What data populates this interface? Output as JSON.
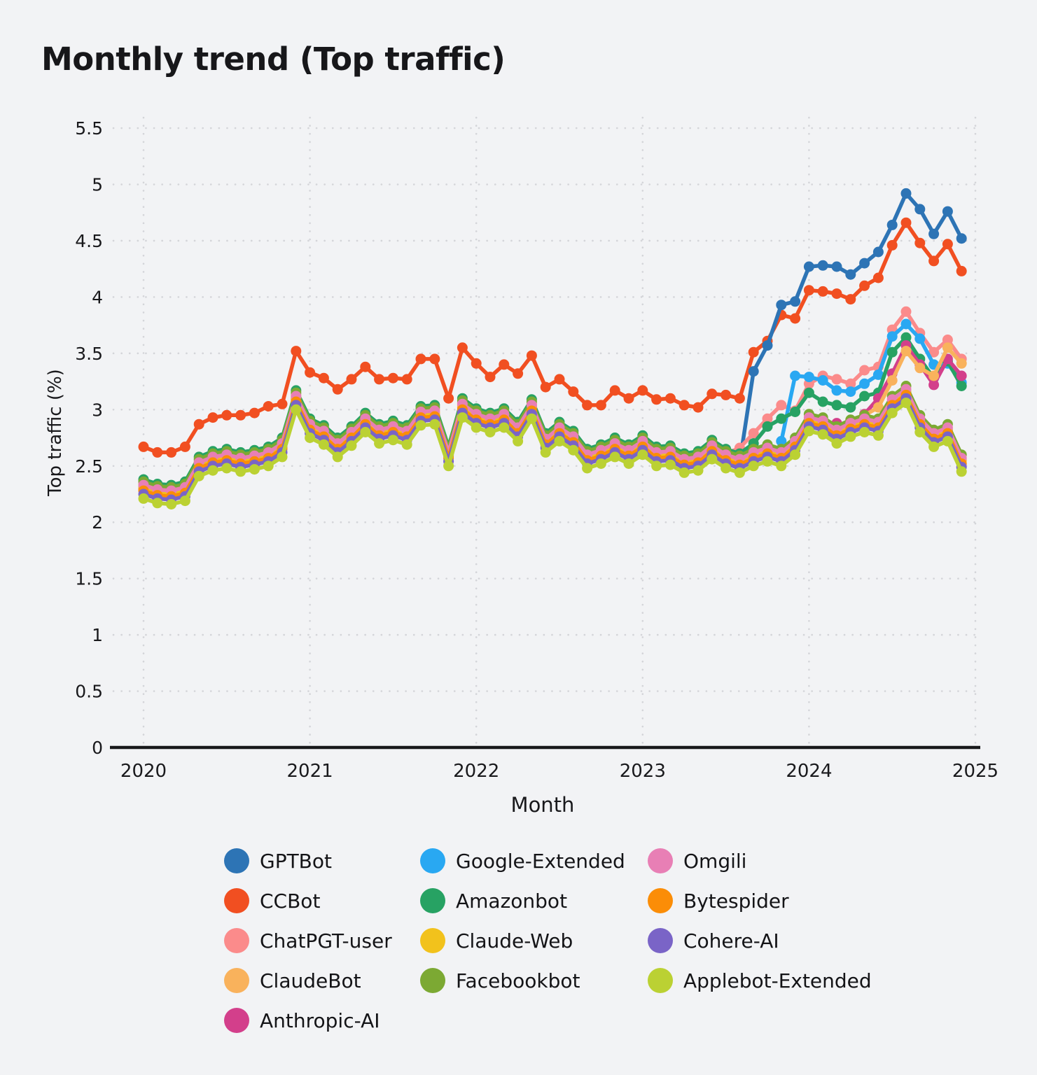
{
  "title": "Monthly trend (Top traffic)",
  "legend": {
    "position": "bottom",
    "columns": [
      [
        "GPTBot",
        "CCBot",
        "ChatPGT-user",
        "ClaudeBot",
        "Anthropic-AI"
      ],
      [
        "Google-Extended",
        "Amazonbot",
        "Claude-Web",
        "Facebookbot"
      ],
      [
        "Omgili",
        "Bytespider",
        "Cohere-AI",
        "Applebot-Extended"
      ]
    ]
  },
  "chart_data": {
    "type": "line",
    "title": "Monthly trend (Top traffic)",
    "xlabel": "Month",
    "ylabel": "Top traffic (%)",
    "x_tick_labels": [
      "2020",
      "2021",
      "2022",
      "2023",
      "2024",
      "2025"
    ],
    "y_tick_labels": [
      "0",
      "0.5",
      "1",
      "1.5",
      "2",
      "2.5",
      "3",
      "3.5",
      "4",
      "4.5",
      "5",
      "5.5"
    ],
    "y_ticks": [
      0,
      0.5,
      1,
      1.5,
      2,
      2.5,
      3,
      3.5,
      4,
      4.5,
      5,
      5.5
    ],
    "ylim": [
      0,
      5.75
    ],
    "grid": "dotted",
    "marker": "circle",
    "colors": {
      "background": "#f2f3f5",
      "gridline": "#d4d5d9",
      "axis_line": "#17181a",
      "text": "#19191c"
    },
    "months": [
      "2020-01",
      "2020-02",
      "2020-03",
      "2020-04",
      "2020-05",
      "2020-06",
      "2020-07",
      "2020-08",
      "2020-09",
      "2020-10",
      "2020-11",
      "2020-12",
      "2021-01",
      "2021-02",
      "2021-03",
      "2021-04",
      "2021-05",
      "2021-06",
      "2021-07",
      "2021-08",
      "2021-09",
      "2021-10",
      "2021-11",
      "2021-12",
      "2022-01",
      "2022-02",
      "2022-03",
      "2022-04",
      "2022-05",
      "2022-06",
      "2022-07",
      "2022-08",
      "2022-09",
      "2022-10",
      "2022-11",
      "2022-12",
      "2023-01",
      "2023-02",
      "2023-03",
      "2023-04",
      "2023-05",
      "2023-06",
      "2023-07",
      "2023-08",
      "2023-09",
      "2023-10",
      "2023-11",
      "2023-12",
      "2024-01",
      "2024-02",
      "2024-03",
      "2024-04",
      "2024-05",
      "2024-06",
      "2024-07",
      "2024-08",
      "2024-09",
      "2024-10",
      "2024-11",
      "2024-12"
    ],
    "series": [
      {
        "name": "CCBot",
        "color": "#f14f21",
        "values": [
          2.67,
          2.62,
          2.62,
          2.67,
          2.87,
          2.93,
          2.95,
          2.95,
          2.97,
          3.03,
          3.05,
          3.52,
          3.33,
          3.28,
          3.18,
          3.27,
          3.38,
          3.27,
          3.28,
          3.27,
          3.45,
          3.45,
          3.1,
          3.55,
          3.41,
          3.29,
          3.4,
          3.32,
          3.48,
          3.2,
          3.27,
          3.16,
          3.04,
          3.04,
          3.17,
          3.1,
          3.17,
          3.09,
          3.1,
          3.04,
          3.02,
          3.14,
          3.13,
          3.1,
          3.51,
          3.61,
          3.84,
          3.81,
          4.06,
          4.05,
          4.03,
          3.98,
          4.1,
          4.17,
          4.46,
          4.66,
          4.48,
          4.32,
          4.47,
          4.23
        ]
      },
      {
        "name": "GPTBot",
        "color": "#2d74b5",
        "values": [
          null,
          null,
          null,
          null,
          null,
          null,
          null,
          null,
          null,
          null,
          null,
          null,
          null,
          null,
          null,
          null,
          null,
          null,
          null,
          null,
          null,
          null,
          null,
          null,
          null,
          null,
          null,
          null,
          null,
          null,
          null,
          null,
          null,
          null,
          null,
          null,
          null,
          null,
          null,
          null,
          null,
          null,
          null,
          2.53,
          3.34,
          3.57,
          3.93,
          3.96,
          4.27,
          4.28,
          4.27,
          4.2,
          4.3,
          4.4,
          4.64,
          4.92,
          4.78,
          4.56,
          4.76,
          4.52
        ]
      },
      {
        "name": "ChatPGT-user",
        "color": "#fb8b8b",
        "values": [
          2.34,
          2.3,
          2.29,
          2.32,
          2.54,
          2.59,
          2.61,
          2.58,
          2.6,
          2.63,
          2.71,
          3.13,
          2.88,
          2.82,
          2.71,
          2.81,
          2.93,
          2.83,
          2.86,
          2.82,
          2.99,
          3.0,
          2.63,
          3.06,
          2.97,
          2.93,
          2.97,
          2.85,
          3.05,
          2.75,
          2.85,
          2.77,
          2.61,
          2.65,
          2.71,
          2.65,
          2.73,
          2.63,
          2.64,
          2.57,
          2.59,
          2.69,
          2.61,
          2.66,
          2.79,
          2.92,
          3.04,
          2.99,
          3.23,
          3.3,
          3.27,
          3.23,
          3.35,
          3.38,
          3.71,
          3.87,
          3.68,
          3.51,
          3.62,
          3.45
        ]
      },
      {
        "name": "Google-Extended",
        "color": "#29a8f2",
        "values": [
          null,
          null,
          null,
          null,
          null,
          null,
          null,
          null,
          null,
          null,
          null,
          null,
          null,
          null,
          null,
          null,
          null,
          null,
          null,
          null,
          null,
          null,
          null,
          null,
          null,
          null,
          null,
          null,
          null,
          null,
          null,
          null,
          null,
          null,
          null,
          null,
          null,
          null,
          null,
          null,
          null,
          null,
          null,
          null,
          null,
          null,
          2.72,
          3.3,
          3.29,
          3.26,
          3.17,
          3.16,
          3.23,
          3.31,
          3.65,
          3.76,
          3.63,
          3.4,
          3.41,
          3.24
        ]
      },
      {
        "name": "Amazonbot",
        "color": "#27a263",
        "values": [
          2.38,
          2.34,
          2.33,
          2.36,
          2.58,
          2.63,
          2.65,
          2.62,
          2.64,
          2.67,
          2.75,
          3.17,
          2.92,
          2.86,
          2.75,
          2.85,
          2.97,
          2.87,
          2.9,
          2.86,
          3.03,
          3.04,
          2.67,
          3.1,
          3.01,
          2.97,
          3.01,
          2.89,
          3.09,
          2.79,
          2.89,
          2.81,
          2.65,
          2.69,
          2.75,
          2.69,
          2.77,
          2.67,
          2.68,
          2.61,
          2.63,
          2.73,
          2.65,
          2.61,
          2.7,
          2.85,
          2.92,
          2.98,
          3.15,
          3.07,
          3.04,
          3.02,
          3.12,
          3.15,
          3.51,
          3.64,
          3.45,
          3.28,
          3.43,
          3.21
        ]
      },
      {
        "name": "Anthropic-AI",
        "color": "#d33f8b",
        "values": [
          2.3,
          2.26,
          2.25,
          2.28,
          2.5,
          2.55,
          2.57,
          2.54,
          2.56,
          2.59,
          2.67,
          3.09,
          2.84,
          2.78,
          2.67,
          2.77,
          2.89,
          2.79,
          2.82,
          2.78,
          2.95,
          2.96,
          2.59,
          3.02,
          2.93,
          2.89,
          2.93,
          2.81,
          3.01,
          2.71,
          2.81,
          2.73,
          2.57,
          2.61,
          2.67,
          2.61,
          2.69,
          2.59,
          2.6,
          2.53,
          2.55,
          2.65,
          2.57,
          2.53,
          2.59,
          2.63,
          2.59,
          2.69,
          2.9,
          2.87,
          2.88,
          2.87,
          2.96,
          3.1,
          3.32,
          3.57,
          3.4,
          3.22,
          3.45,
          3.3
        ]
      },
      {
        "name": "ClaudeBot",
        "color": "#f9b25c",
        "values": [
          2.32,
          2.28,
          2.27,
          2.3,
          2.52,
          2.57,
          2.59,
          2.56,
          2.58,
          2.61,
          2.69,
          3.11,
          2.86,
          2.8,
          2.69,
          2.79,
          2.91,
          2.81,
          2.84,
          2.8,
          2.97,
          2.98,
          2.61,
          3.04,
          2.95,
          2.91,
          2.95,
          2.83,
          3.03,
          2.73,
          2.83,
          2.75,
          2.59,
          2.63,
          2.69,
          2.63,
          2.71,
          2.61,
          2.62,
          2.55,
          2.57,
          2.67,
          2.59,
          2.55,
          2.61,
          2.65,
          2.61,
          2.71,
          2.92,
          2.89,
          2.81,
          2.88,
          2.95,
          3.02,
          3.26,
          3.52,
          3.37,
          3.3,
          3.55,
          3.41
        ]
      },
      {
        "name": "Claude-Web",
        "color": "#f2c21c",
        "values": [
          2.31,
          2.27,
          2.26,
          2.29,
          2.51,
          2.56,
          2.58,
          2.55,
          2.57,
          2.6,
          2.68,
          3.1,
          2.85,
          2.79,
          2.68,
          2.78,
          2.9,
          2.8,
          2.83,
          2.79,
          2.96,
          2.97,
          2.6,
          3.03,
          2.94,
          2.9,
          2.94,
          2.82,
          3.02,
          2.72,
          2.82,
          2.74,
          2.58,
          2.62,
          2.68,
          2.62,
          2.7,
          2.6,
          2.61,
          2.54,
          2.56,
          2.66,
          2.58,
          2.54,
          2.6,
          2.64,
          2.6,
          2.7,
          2.91,
          2.88,
          2.8,
          2.86,
          2.9,
          2.87,
          3.07,
          3.16,
          2.9,
          2.77,
          2.82,
          2.55
        ]
      },
      {
        "name": "Facebookbot",
        "color": "#7ca933",
        "values": [
          2.36,
          2.32,
          2.31,
          2.34,
          2.56,
          2.61,
          2.63,
          2.6,
          2.62,
          2.65,
          2.73,
          3.15,
          2.9,
          2.84,
          2.73,
          2.83,
          2.95,
          2.85,
          2.88,
          2.84,
          3.01,
          3.02,
          2.65,
          3.08,
          2.99,
          2.95,
          2.99,
          2.87,
          3.07,
          2.77,
          2.87,
          2.79,
          2.63,
          2.67,
          2.73,
          2.67,
          2.75,
          2.65,
          2.66,
          2.59,
          2.61,
          2.71,
          2.63,
          2.59,
          2.65,
          2.69,
          2.65,
          2.75,
          2.96,
          2.93,
          2.85,
          2.91,
          2.95,
          2.92,
          3.12,
          3.21,
          2.95,
          2.82,
          2.87,
          2.6
        ]
      },
      {
        "name": "Omgili",
        "color": "#e87fb5",
        "values": [
          2.33,
          2.29,
          2.28,
          2.31,
          2.53,
          2.58,
          2.6,
          2.57,
          2.59,
          2.62,
          2.7,
          3.12,
          2.87,
          2.81,
          2.7,
          2.8,
          2.92,
          2.82,
          2.85,
          2.81,
          2.98,
          2.99,
          2.62,
          3.05,
          2.96,
          2.92,
          2.96,
          2.84,
          3.04,
          2.74,
          2.84,
          2.76,
          2.6,
          2.64,
          2.7,
          2.64,
          2.72,
          2.62,
          2.63,
          2.56,
          2.58,
          2.68,
          2.6,
          2.56,
          2.62,
          2.66,
          2.62,
          2.72,
          2.93,
          2.9,
          2.82,
          2.88,
          2.92,
          2.89,
          3.09,
          3.18,
          2.92,
          2.79,
          2.84,
          2.57
        ]
      },
      {
        "name": "Bytespider",
        "color": "#fb8d07",
        "values": [
          2.28,
          2.24,
          2.23,
          2.26,
          2.48,
          2.53,
          2.55,
          2.52,
          2.54,
          2.57,
          2.65,
          3.07,
          2.82,
          2.76,
          2.65,
          2.75,
          2.87,
          2.77,
          2.8,
          2.76,
          2.93,
          2.94,
          2.57,
          3.0,
          2.91,
          2.87,
          2.91,
          2.79,
          2.99,
          2.69,
          2.79,
          2.71,
          2.55,
          2.59,
          2.65,
          2.59,
          2.67,
          2.57,
          2.58,
          2.51,
          2.53,
          2.63,
          2.55,
          2.51,
          2.57,
          2.61,
          2.57,
          2.67,
          2.88,
          2.85,
          2.77,
          2.83,
          2.87,
          2.84,
          3.04,
          3.13,
          2.87,
          2.74,
          2.79,
          2.52
        ]
      },
      {
        "name": "Cohere-AI",
        "color": "#7a64c7",
        "values": [
          2.25,
          2.21,
          2.2,
          2.23,
          2.45,
          2.5,
          2.52,
          2.49,
          2.51,
          2.54,
          2.62,
          3.04,
          2.79,
          2.73,
          2.62,
          2.72,
          2.84,
          2.74,
          2.77,
          2.73,
          2.9,
          2.91,
          2.54,
          2.97,
          2.88,
          2.84,
          2.88,
          2.76,
          2.96,
          2.66,
          2.76,
          2.68,
          2.52,
          2.56,
          2.62,
          2.56,
          2.64,
          2.54,
          2.55,
          2.48,
          2.5,
          2.6,
          2.52,
          2.48,
          2.54,
          2.58,
          2.54,
          2.64,
          2.85,
          2.82,
          2.74,
          2.8,
          2.84,
          2.81,
          3.01,
          3.1,
          2.84,
          2.71,
          2.76,
          2.49
        ]
      },
      {
        "name": "Applebot-Extended",
        "color": "#bbd133",
        "values": [
          2.21,
          2.17,
          2.16,
          2.19,
          2.41,
          2.46,
          2.48,
          2.45,
          2.47,
          2.5,
          2.58,
          3.0,
          2.75,
          2.69,
          2.58,
          2.68,
          2.8,
          2.7,
          2.73,
          2.69,
          2.86,
          2.87,
          2.5,
          2.93,
          2.84,
          2.8,
          2.84,
          2.72,
          2.92,
          2.62,
          2.72,
          2.64,
          2.48,
          2.52,
          2.58,
          2.52,
          2.6,
          2.5,
          2.51,
          2.44,
          2.46,
          2.56,
          2.48,
          2.44,
          2.5,
          2.54,
          2.5,
          2.6,
          2.81,
          2.78,
          2.7,
          2.76,
          2.8,
          2.77,
          2.97,
          3.06,
          2.8,
          2.67,
          2.72,
          2.45
        ]
      }
    ]
  }
}
